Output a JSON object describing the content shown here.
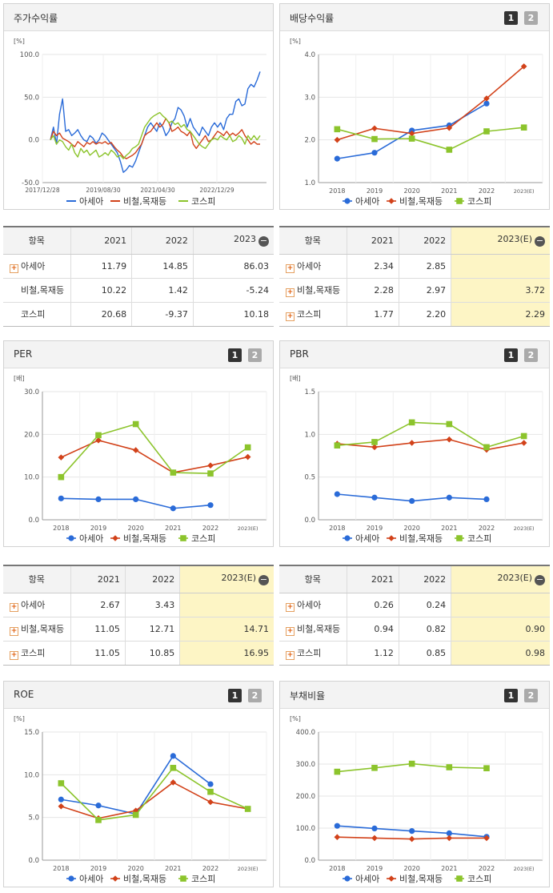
{
  "legend": {
    "s1": "아세아",
    "s2": "비철,목재등",
    "s3": "코스피"
  },
  "colors": {
    "s1": "#2a6bd8",
    "s2": "#d2421a",
    "s3": "#8cc42c"
  },
  "panels": {
    "stock": {
      "title": "주가수익률",
      "unit": "[%]",
      "yticks": [
        "100.0",
        "50.0",
        "0.0",
        "-50.0"
      ],
      "xticks": [
        "2017/12/28",
        "2019/08/30",
        "2021/04/30",
        "2022/12/29"
      ]
    },
    "div": {
      "title": "배당수익률",
      "unit": "[%]",
      "yticks": [
        "4.0",
        "3.0",
        "2.0",
        "1.0"
      ],
      "xticks": [
        "2018",
        "2019",
        "2020",
        "2021",
        "2022",
        "2023(E)"
      ]
    },
    "per": {
      "title": "PER",
      "unit": "[배]",
      "yticks": [
        "30.0",
        "20.0",
        "10.0",
        "0.0"
      ],
      "xticks": [
        "2018",
        "2019",
        "2020",
        "2021",
        "2022",
        "2023(E)"
      ]
    },
    "pbr": {
      "title": "PBR",
      "unit": "[배]",
      "yticks": [
        "1.5",
        "1.0",
        "0.5",
        "0.0"
      ],
      "xticks": [
        "2018",
        "2019",
        "2020",
        "2021",
        "2022",
        "2023(E)"
      ]
    },
    "roe": {
      "title": "ROE",
      "unit": "[%]",
      "yticks": [
        "15.0",
        "10.0",
        "5.0",
        "0.0"
      ],
      "xticks": [
        "2018",
        "2019",
        "2020",
        "2021",
        "2022",
        "2023(E)"
      ]
    },
    "debt": {
      "title": "부채비율",
      "unit": "[%]",
      "yticks": [
        "400.0",
        "300.0",
        "200.0",
        "100.0",
        "0.0"
      ],
      "xticks": [
        "2018",
        "2019",
        "2020",
        "2021",
        "2022",
        "2023(E)"
      ]
    }
  },
  "page_buttons": [
    "1",
    "2"
  ],
  "tables": {
    "stock": {
      "headers": [
        "항목",
        "2021",
        "2022",
        "2023"
      ],
      "rows": [
        {
          "name": "아세아",
          "plus": true,
          "vals": [
            "11.79",
            "14.85",
            "86.03"
          ]
        },
        {
          "name": "비철,목재등",
          "plus": false,
          "vals": [
            "10.22",
            "1.42",
            "-5.24"
          ]
        },
        {
          "name": "코스피",
          "plus": false,
          "vals": [
            "20.68",
            "-9.37",
            "10.18"
          ]
        }
      ]
    },
    "div": {
      "headers": [
        "항목",
        "2021",
        "2022",
        "2023(E)"
      ],
      "rows": [
        {
          "name": "아세아",
          "plus": true,
          "vals": [
            "2.34",
            "2.85",
            ""
          ]
        },
        {
          "name": "비철,목재등",
          "plus": true,
          "vals": [
            "2.28",
            "2.97",
            "3.72"
          ]
        },
        {
          "name": "코스피",
          "plus": true,
          "vals": [
            "1.77",
            "2.20",
            "2.29"
          ]
        }
      ]
    },
    "per": {
      "headers": [
        "항목",
        "2021",
        "2022",
        "2023(E)"
      ],
      "rows": [
        {
          "name": "아세아",
          "plus": true,
          "vals": [
            "2.67",
            "3.43",
            ""
          ]
        },
        {
          "name": "비철,목재등",
          "plus": true,
          "vals": [
            "11.05",
            "12.71",
            "14.71"
          ]
        },
        {
          "name": "코스피",
          "plus": true,
          "vals": [
            "11.05",
            "10.85",
            "16.95"
          ]
        }
      ]
    },
    "pbr": {
      "headers": [
        "항목",
        "2021",
        "2022",
        "2023(E)"
      ],
      "rows": [
        {
          "name": "아세아",
          "plus": true,
          "vals": [
            "0.26",
            "0.24",
            ""
          ]
        },
        {
          "name": "비철,목재등",
          "plus": true,
          "vals": [
            "0.94",
            "0.82",
            "0.90"
          ]
        },
        {
          "name": "코스피",
          "plus": true,
          "vals": [
            "1.12",
            "0.85",
            "0.98"
          ]
        }
      ]
    }
  },
  "chart_data": [
    {
      "id": "stock",
      "type": "line",
      "title": "주가수익률",
      "ylabel": "[%]",
      "ylim": [
        -50,
        100
      ],
      "x_range": [
        "2017/12/28",
        "2023/06"
      ],
      "series": [
        {
          "name": "아세아",
          "values": [
            0,
            15,
            -5,
            30,
            48,
            10,
            12,
            5,
            8,
            12,
            5,
            0,
            -2,
            5,
            2,
            -4,
            0,
            8,
            5,
            0,
            -5,
            -10,
            -15,
            -25,
            -38,
            -35,
            -30,
            -32,
            -25,
            -15,
            -5,
            5,
            15,
            20,
            15,
            10,
            20,
            15,
            5,
            10,
            20,
            25,
            38,
            35,
            28,
            15,
            25,
            15,
            10,
            5,
            15,
            10,
            5,
            15,
            20,
            15,
            20,
            12,
            25,
            30,
            30,
            45,
            48,
            40,
            42,
            60,
            65,
            62,
            70,
            80
          ]
        },
        {
          "name": "비철,목재등",
          "values": [
            0,
            10,
            5,
            8,
            2,
            0,
            -2,
            -5,
            -8,
            -2,
            -5,
            -8,
            -3,
            -5,
            -2,
            -5,
            -3,
            -4,
            -2,
            -5,
            -3,
            -8,
            -12,
            -15,
            -20,
            -22,
            -20,
            -18,
            -15,
            -10,
            -5,
            5,
            8,
            10,
            15,
            20,
            15,
            18,
            25,
            20,
            10,
            12,
            15,
            10,
            8,
            5,
            10,
            -5,
            -10,
            -5,
            0,
            5,
            -2,
            0,
            5,
            10,
            8,
            5,
            10,
            5,
            8,
            5,
            8,
            12,
            5,
            0,
            -5,
            -2,
            -5,
            -5
          ]
        },
        {
          "name": "코스피",
          "values": [
            0,
            5,
            -5,
            0,
            -2,
            -8,
            -12,
            -5,
            -15,
            -20,
            -10,
            -15,
            -12,
            -18,
            -15,
            -12,
            -20,
            -18,
            -15,
            -18,
            -12,
            -15,
            -20,
            -18,
            -22,
            -18,
            -15,
            -10,
            -8,
            -5,
            5,
            15,
            20,
            25,
            28,
            30,
            32,
            28,
            25,
            20,
            22,
            18,
            20,
            15,
            18,
            12,
            10,
            5,
            0,
            -5,
            -8,
            -10,
            -5,
            0,
            2,
            0,
            5,
            2,
            0,
            5,
            -2,
            0,
            5,
            2,
            -5,
            5,
            0,
            5,
            0,
            5
          ]
        }
      ]
    },
    {
      "id": "div",
      "type": "line",
      "title": "배당수익률",
      "ylabel": "[%]",
      "ylim": [
        1,
        4
      ],
      "categories": [
        "2018",
        "2019",
        "2020",
        "2021",
        "2022",
        "2023(E)"
      ],
      "series": [
        {
          "name": "아세아",
          "values": [
            1.56,
            1.7,
            2.22,
            2.34,
            2.85,
            null
          ]
        },
        {
          "name": "비철,목재등",
          "values": [
            2.0,
            2.27,
            2.15,
            2.28,
            2.97,
            3.72
          ]
        },
        {
          "name": "코스피",
          "values": [
            2.25,
            2.02,
            2.03,
            1.77,
            2.2,
            2.29
          ]
        }
      ]
    },
    {
      "id": "per",
      "type": "line",
      "title": "PER",
      "ylabel": "[배]",
      "ylim": [
        0,
        30
      ],
      "categories": [
        "2018",
        "2019",
        "2020",
        "2021",
        "2022",
        "2023(E)"
      ],
      "series": [
        {
          "name": "아세아",
          "values": [
            5.0,
            4.8,
            4.8,
            2.67,
            3.43,
            null
          ]
        },
        {
          "name": "비철,목재등",
          "values": [
            14.6,
            18.6,
            16.3,
            11.05,
            12.71,
            14.71
          ]
        },
        {
          "name": "코스피",
          "values": [
            10.0,
            19.8,
            22.4,
            11.05,
            10.85,
            16.95
          ]
        }
      ]
    },
    {
      "id": "pbr",
      "type": "line",
      "title": "PBR",
      "ylabel": "[배]",
      "ylim": [
        0,
        1.5
      ],
      "categories": [
        "2018",
        "2019",
        "2020",
        "2021",
        "2022",
        "2023(E)"
      ],
      "series": [
        {
          "name": "아세아",
          "values": [
            0.3,
            0.26,
            0.22,
            0.26,
            0.24,
            null
          ]
        },
        {
          "name": "비철,목재등",
          "values": [
            0.89,
            0.85,
            0.9,
            0.94,
            0.82,
            0.9
          ]
        },
        {
          "name": "코스피",
          "values": [
            0.87,
            0.91,
            1.14,
            1.12,
            0.85,
            0.98
          ]
        }
      ]
    },
    {
      "id": "roe",
      "type": "line",
      "title": "ROE",
      "ylabel": "[%]",
      "ylim": [
        0,
        15
      ],
      "categories": [
        "2018",
        "2019",
        "2020",
        "2021",
        "2022",
        "2023(E)"
      ],
      "series": [
        {
          "name": "아세아",
          "values": [
            7.1,
            6.4,
            5.4,
            12.2,
            8.9,
            null
          ]
        },
        {
          "name": "비철,목재등",
          "values": [
            6.3,
            4.9,
            5.8,
            9.1,
            6.8,
            6.0
          ]
        },
        {
          "name": "코스피",
          "values": [
            9.0,
            4.7,
            5.3,
            10.8,
            8.0,
            6.0
          ]
        }
      ]
    },
    {
      "id": "debt",
      "type": "line",
      "title": "부채비율",
      "ylabel": "[%]",
      "ylim": [
        0,
        400
      ],
      "categories": [
        "2018",
        "2019",
        "2020",
        "2021",
        "2022",
        "2023(E)"
      ],
      "series": [
        {
          "name": "아세아",
          "values": [
            107,
            99,
            91,
            84,
            73,
            null
          ]
        },
        {
          "name": "비철,목재등",
          "values": [
            72,
            69,
            66,
            69,
            69,
            null
          ]
        },
        {
          "name": "코스피",
          "values": [
            276,
            288,
            301,
            290,
            287,
            null
          ]
        }
      ]
    }
  ]
}
